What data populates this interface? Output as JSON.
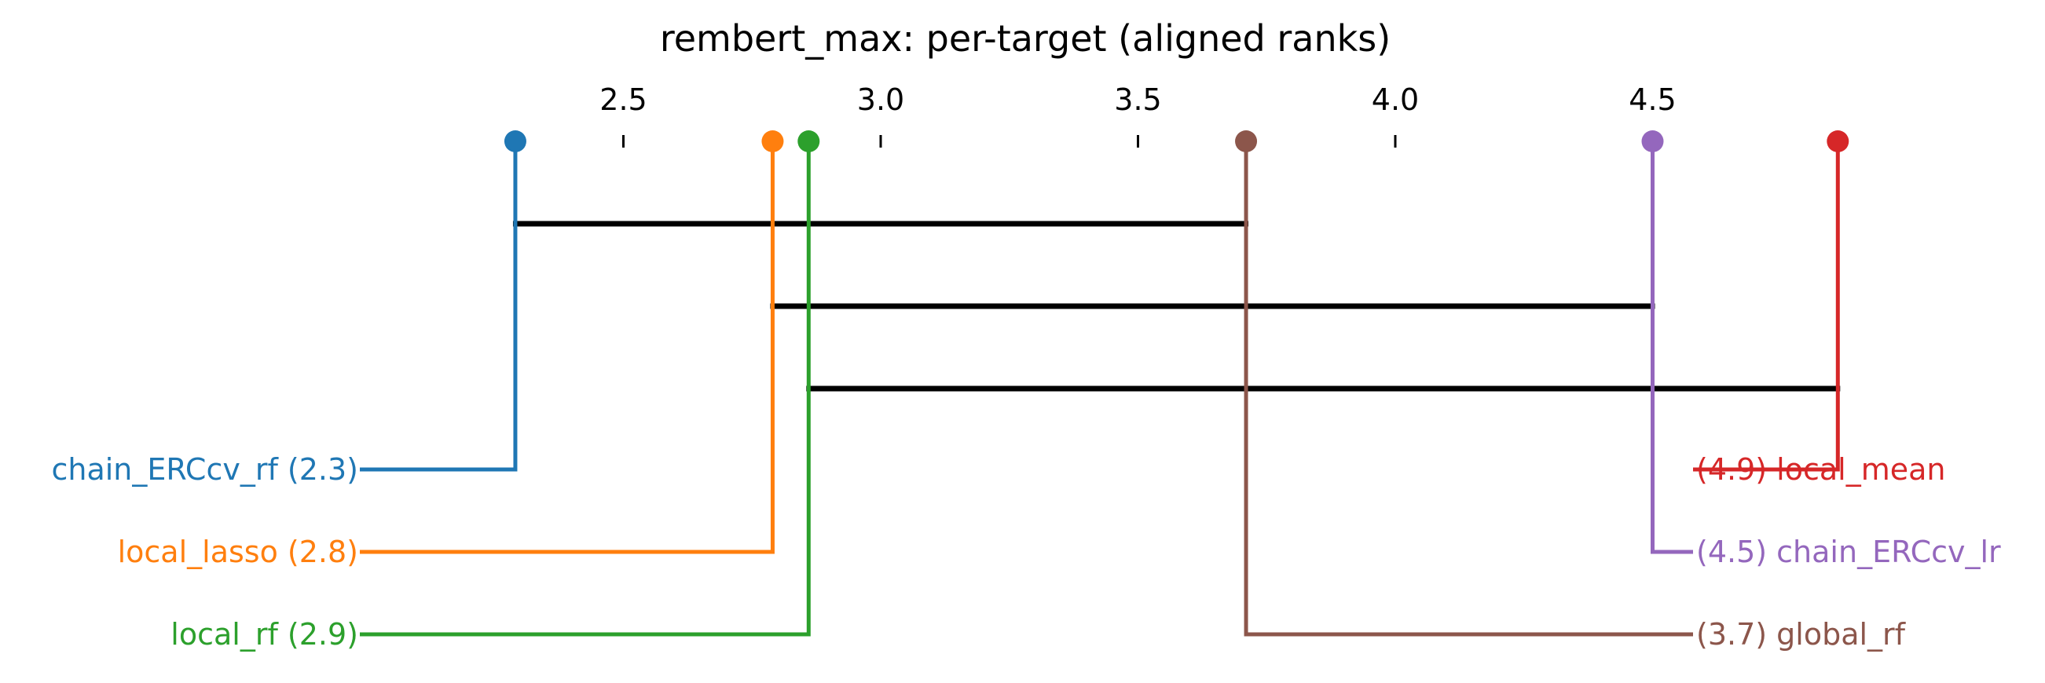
{
  "chart_data": {
    "type": "critical-difference",
    "title": "rembert_max: per-target (aligned ranks)",
    "axis": {
      "range": [
        2.29,
        4.93
      ],
      "ticks": [
        "2.5",
        "3.0",
        "3.5",
        "4.0",
        "4.5"
      ],
      "tick_values": [
        2.5,
        3.0,
        3.5,
        4.0,
        4.5
      ]
    },
    "methods": [
      {
        "name": "chain_ERCcv_rf",
        "rank": 2.29,
        "rank_label": "2.3",
        "color": "#1f77b4",
        "side": "left"
      },
      {
        "name": "local_lasso",
        "rank": 2.79,
        "rank_label": "2.8",
        "color": "#ff7f0e",
        "side": "left"
      },
      {
        "name": "local_rf",
        "rank": 2.86,
        "rank_label": "2.9",
        "color": "#2ca02c",
        "side": "left"
      },
      {
        "name": "global_rf",
        "rank": 3.71,
        "rank_label": "3.7",
        "color": "#8c564b",
        "side": "right"
      },
      {
        "name": "chain_ERCcv_lr",
        "rank": 4.5,
        "rank_label": "4.5",
        "color": "#9467bd",
        "side": "right"
      },
      {
        "name": "local_mean",
        "rank": 4.86,
        "rank_label": "4.9",
        "color": "#d62728",
        "side": "right"
      }
    ],
    "cliques": [
      [
        2.29,
        3.71
      ],
      [
        2.79,
        4.5
      ],
      [
        2.86,
        4.86
      ]
    ],
    "labels": {
      "left": [
        "chain_ERCcv_rf (2.3)",
        "local_lasso (2.8)",
        "local_rf (2.9)"
      ],
      "right": [
        "(4.9) local_mean",
        "(4.5) chain_ERCcv_lr",
        "(3.7) global_rf"
      ]
    }
  }
}
